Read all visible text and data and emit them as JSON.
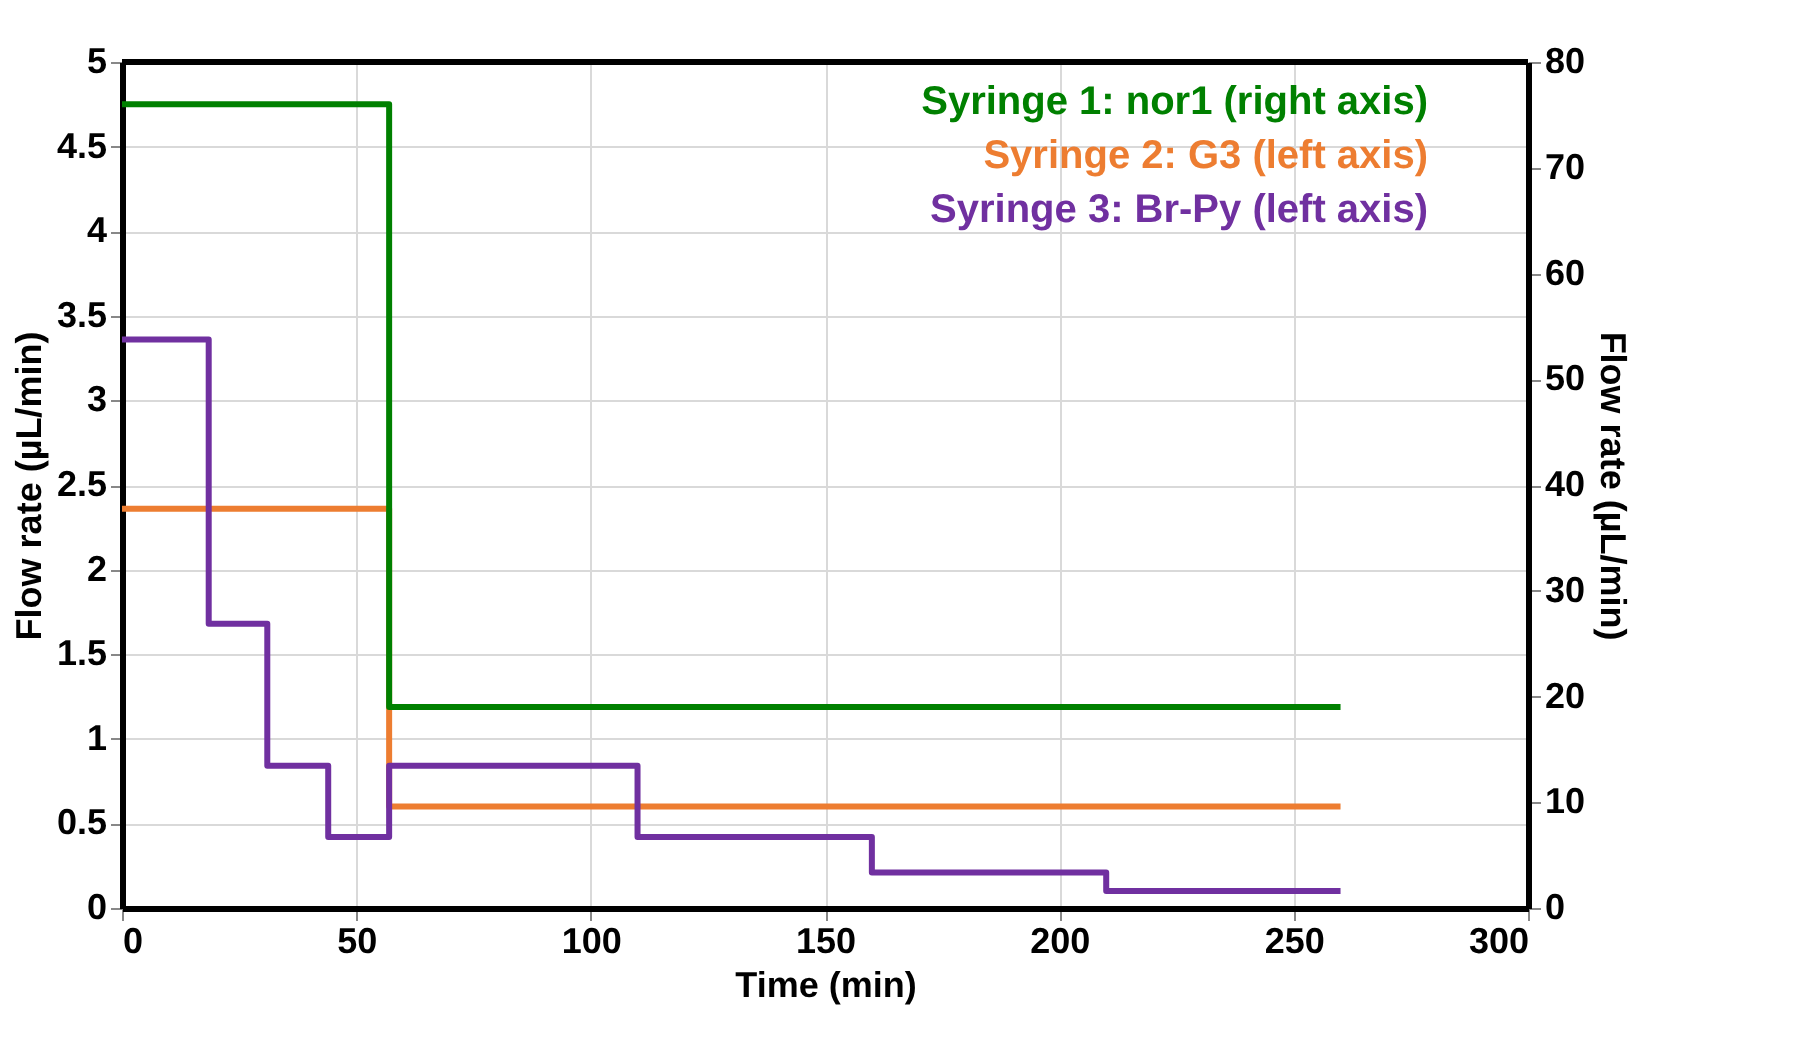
{
  "chart_data": {
    "type": "step",
    "xlabel": "Time (min)",
    "ylabel": "Flow rate (µL/min)",
    "y2label": "Flow rate (µL/min)",
    "xlim": [
      0,
      300
    ],
    "xticks": [
      0,
      50,
      100,
      150,
      200,
      250,
      300
    ],
    "ylim": [
      0,
      5
    ],
    "yticks": [
      0,
      0.5,
      1,
      1.5,
      2,
      2.5,
      3,
      3.5,
      4,
      4.5,
      5
    ],
    "y2lim": [
      0,
      80
    ],
    "y2ticks": [
      0,
      10,
      20,
      30,
      40,
      50,
      60,
      70,
      80
    ],
    "grid": true,
    "legend": "top right",
    "marker": "none",
    "line_style": "solid",
    "series": [
      {
        "name": "Syringe 1: nor1 (right axis)",
        "color": "#008000",
        "axis": "y2",
        "x": [
          0,
          57,
          260
        ],
        "values": [
          76,
          19,
          19
        ]
      },
      {
        "name": "Syringe 2: G3 (left axis)",
        "color": "#ed7d31",
        "x": [
          0,
          57,
          260
        ],
        "values": [
          2.36,
          0.6,
          0.6
        ]
      },
      {
        "name": "Syringe 3: Br-Py (left axis)",
        "color": "#7030a0",
        "x": [
          0,
          18.5,
          31,
          44,
          57,
          110,
          160,
          210,
          260
        ],
        "values": [
          3.36,
          1.68,
          0.84,
          0.42,
          0.84,
          0.42,
          0.21,
          0.1,
          0.1
        ]
      }
    ]
  }
}
